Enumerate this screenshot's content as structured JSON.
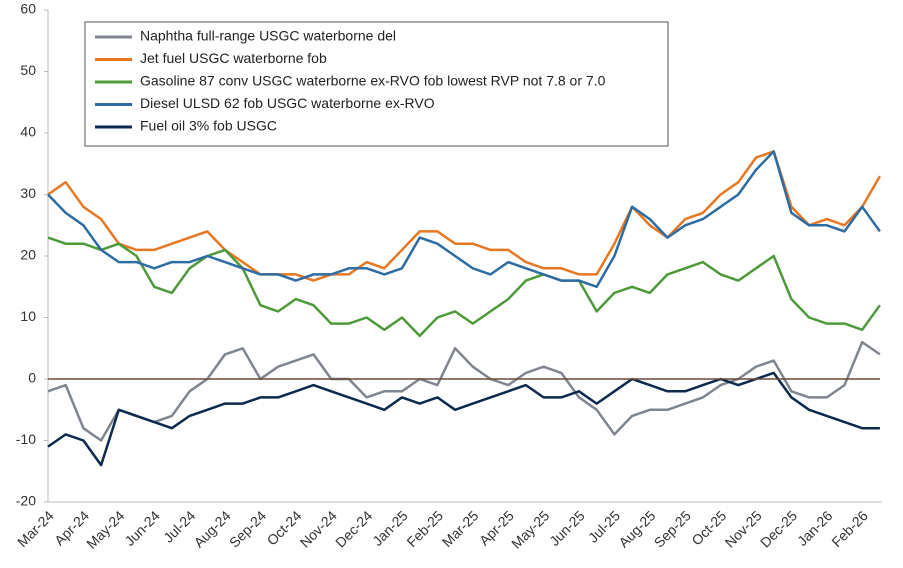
{
  "chart_data": {
    "type": "line",
    "categories": [
      "Mar-24",
      null,
      "Apr-24",
      null,
      "May-24",
      null,
      "Jun-24",
      null,
      "Jul-24",
      null,
      "Aug-24",
      null,
      "Sep-24",
      null,
      "Oct-24",
      null,
      "Nov-24",
      null,
      "Dec-24",
      null,
      "Jan-25",
      null,
      "Feb-25",
      null,
      "Mar-25",
      null,
      "Apr-25",
      null,
      "May-25",
      null,
      "Jun-25",
      null,
      "Jul-25",
      null,
      "Aug-25",
      null,
      "Sep-25",
      null,
      "Oct-25",
      null,
      "Nov-25",
      null,
      "Dec-25",
      null,
      "Jan-26",
      null,
      "Feb-26",
      null
    ],
    "series": [
      {
        "name": "Naphtha full-range USGC waterborne del",
        "color": "#7f8690",
        "values": [
          -2,
          -1,
          -8,
          -10,
          -5,
          -6,
          -7,
          -6,
          -2,
          0,
          4,
          5,
          0,
          2,
          3,
          4,
          0,
          0,
          -3,
          -2,
          -2,
          0,
          -1,
          5,
          2,
          0,
          -1,
          1,
          2,
          1,
          -3,
          -5,
          -9,
          -6,
          -5,
          -5,
          -4,
          -3,
          -1,
          0,
          2,
          3,
          -2,
          -3,
          -3,
          -1,
          6,
          4
        ]
      },
      {
        "name": "Jet fuel USGC waterborne fob",
        "color": "#e87722",
        "values": [
          30,
          32,
          28,
          26,
          22,
          21,
          21,
          22,
          23,
          24,
          21,
          19,
          17,
          17,
          17,
          16,
          17,
          17,
          19,
          18,
          21,
          24,
          24,
          22,
          22,
          21,
          21,
          19,
          18,
          18,
          17,
          17,
          22,
          28,
          25,
          23,
          26,
          27,
          30,
          32,
          36,
          37,
          28,
          25,
          26,
          25,
          28,
          33
        ]
      },
      {
        "name": "Gasoline 87 conv USGC waterborne ex-RVO fob lowest RVP not 7.8 or 7.0",
        "color": "#4e9a3a",
        "values": [
          23,
          22,
          22,
          21,
          22,
          20,
          15,
          14,
          18,
          20,
          21,
          18,
          12,
          11,
          13,
          12,
          9,
          9,
          10,
          8,
          10,
          7,
          10,
          11,
          9,
          11,
          13,
          16,
          17,
          16,
          16,
          11,
          14,
          15,
          14,
          17,
          18,
          19,
          17,
          16,
          18,
          20,
          13,
          10,
          9,
          9,
          8,
          12
        ]
      },
      {
        "name": "Diesel ULSD 62 fob USGC waterborne ex-RVO",
        "color": "#2e6ca4",
        "values": [
          30,
          27,
          25,
          21,
          19,
          19,
          18,
          19,
          19,
          20,
          19,
          18,
          17,
          17,
          16,
          17,
          17,
          18,
          18,
          17,
          18,
          23,
          22,
          20,
          18,
          17,
          19,
          18,
          17,
          16,
          16,
          15,
          20,
          28,
          26,
          23,
          25,
          26,
          28,
          30,
          34,
          37,
          27,
          25,
          25,
          24,
          28,
          24
        ]
      },
      {
        "name": "Fuel oil 3% fob USGC",
        "color": "#0d2a4e",
        "values": [
          -11,
          -9,
          -10,
          -14,
          -5,
          -6,
          -7,
          -8,
          -6,
          -5,
          -4,
          -4,
          -3,
          -3,
          -2,
          -1,
          -2,
          -3,
          -4,
          -5,
          -3,
          -4,
          -3,
          -5,
          -4,
          -3,
          -2,
          -1,
          -3,
          -3,
          -2,
          -4,
          -2,
          0,
          -1,
          -2,
          -2,
          -1,
          0,
          -1,
          0,
          1,
          -3,
          -5,
          -6,
          -7,
          -8,
          -8
        ]
      }
    ],
    "ylim": [
      -20,
      60
    ],
    "yticks": [
      -20,
      -10,
      0,
      10,
      20,
      30,
      40,
      50,
      60
    ],
    "grid": false
  }
}
